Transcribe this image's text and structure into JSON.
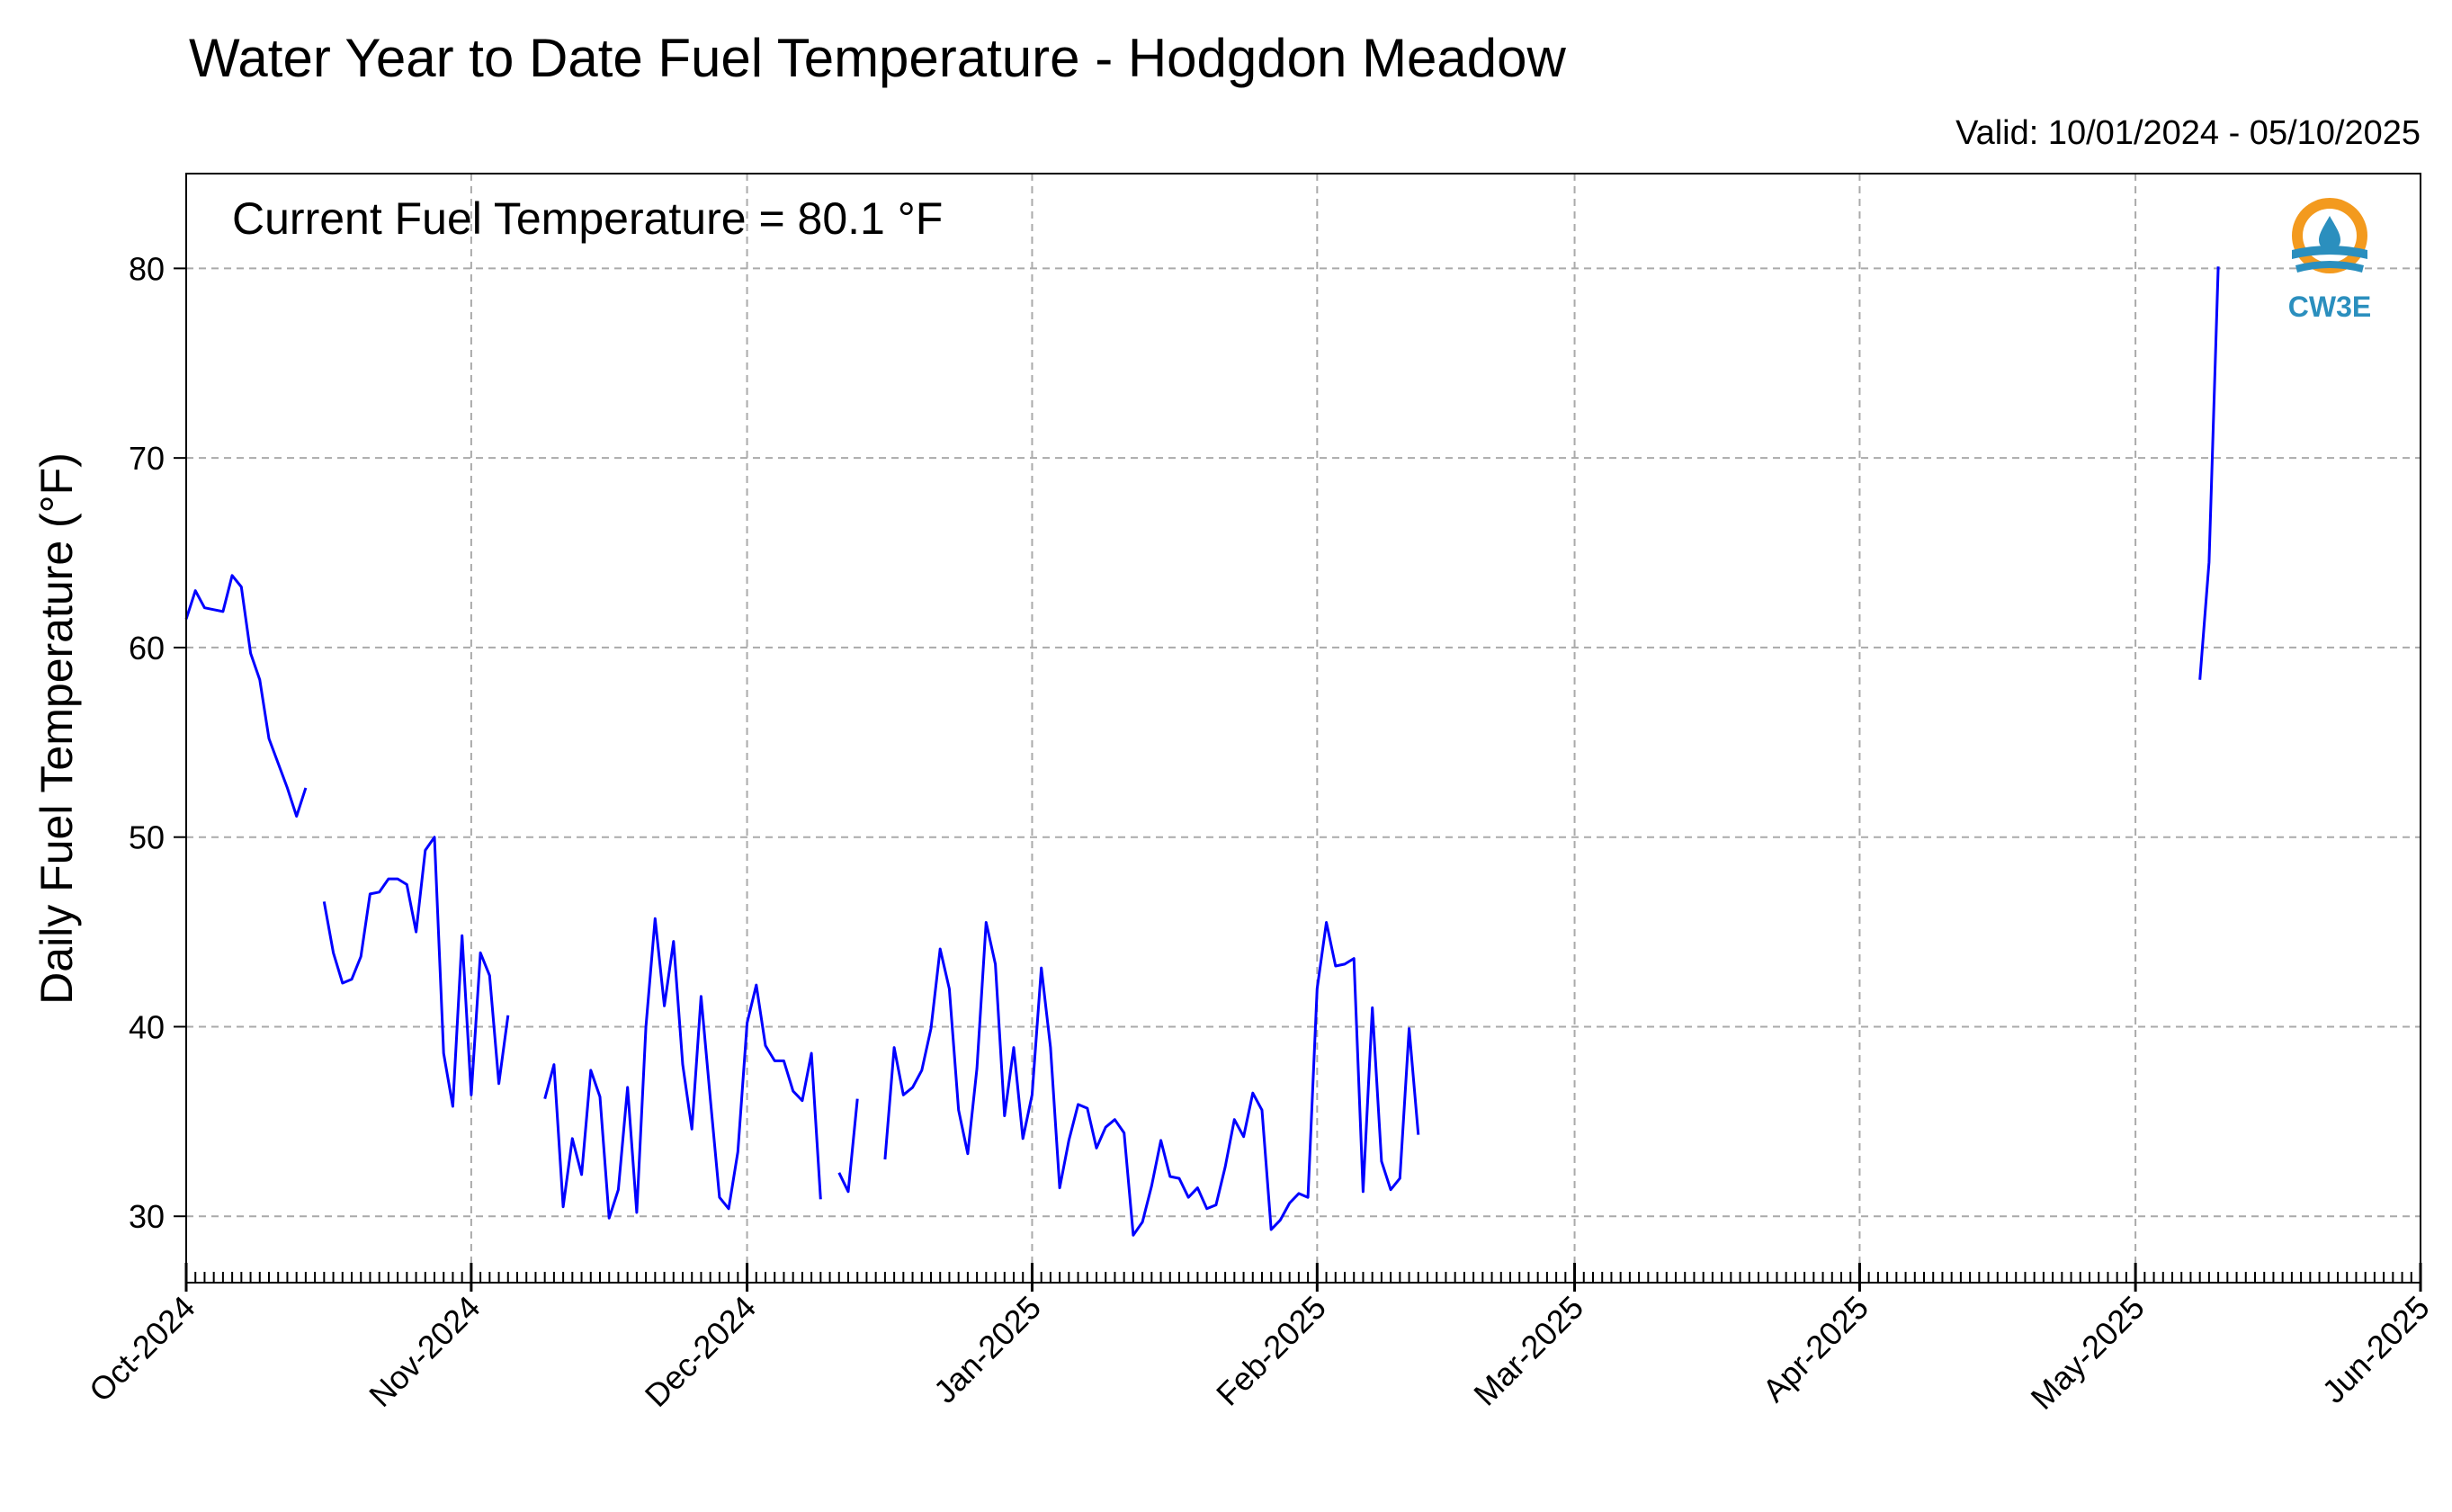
{
  "chart_data": {
    "type": "line",
    "title": "Water Year to Date Fuel Temperature - Hodgdon Meadow",
    "subtitle": "Valid: 10/01/2024 - 05/10/2025",
    "annotation": "Current Fuel Temperature = 80.1 °F",
    "ylabel": "Daily Fuel Temperature (°F)",
    "xlabel": "",
    "ylim": [
      26.5,
      85
    ],
    "xlim": [
      "2024-10-01",
      "2025-06-01"
    ],
    "yticks": [
      30,
      40,
      50,
      60,
      70,
      80
    ],
    "ytick_labels": [
      "30",
      "40",
      "50",
      "60",
      "70",
      "80"
    ],
    "xtick_labels": [
      "Oct-2024",
      "Nov-2024",
      "Dec-2024",
      "Jan-2025",
      "Feb-2025",
      "Mar-2025",
      "Apr-2025",
      "May-2025",
      "Jun-2025"
    ],
    "xtick_dates": [
      "2024-10-01",
      "2024-11-01",
      "2024-12-01",
      "2025-01-01",
      "2025-02-01",
      "2025-03-01",
      "2025-04-01",
      "2025-05-01",
      "2025-06-01"
    ],
    "grid": true,
    "series": [
      {
        "color": "#0000ff",
        "points": [
          [
            "2024-10-01",
            61.5
          ],
          [
            "2024-10-02",
            63.0
          ],
          [
            "2024-10-03",
            62.1
          ],
          [
            "2024-10-04",
            62.0
          ],
          [
            "2024-10-05",
            61.9
          ],
          [
            "2024-10-06",
            63.8
          ],
          [
            "2024-10-07",
            63.2
          ],
          [
            "2024-10-08",
            59.7
          ],
          [
            "2024-10-09",
            58.3
          ],
          [
            "2024-10-10",
            55.2
          ],
          [
            "2024-10-11",
            53.9
          ],
          [
            "2024-10-12",
            52.6
          ],
          [
            "2024-10-13",
            51.1
          ],
          [
            "2024-10-14",
            52.6
          ],
          [
            "2024-10-15",
            null
          ],
          [
            "2024-10-16",
            46.6
          ],
          [
            "2024-10-17",
            43.9
          ],
          [
            "2024-10-18",
            42.3
          ],
          [
            "2024-10-19",
            42.5
          ],
          [
            "2024-10-20",
            43.7
          ],
          [
            "2024-10-21",
            47.0
          ],
          [
            "2024-10-22",
            47.1
          ],
          [
            "2024-10-23",
            47.8
          ],
          [
            "2024-10-24",
            47.8
          ],
          [
            "2024-10-25",
            47.5
          ],
          [
            "2024-10-26",
            45.0
          ],
          [
            "2024-10-27",
            49.3
          ],
          [
            "2024-10-28",
            50.0
          ],
          [
            "2024-10-29",
            38.6
          ],
          [
            "2024-10-30",
            35.8
          ],
          [
            "2024-10-31",
            44.8
          ],
          [
            "2024-11-01",
            36.4
          ],
          [
            "2024-11-02",
            43.9
          ],
          [
            "2024-11-03",
            42.7
          ],
          [
            "2024-11-04",
            37.0
          ],
          [
            "2024-11-05",
            40.6
          ],
          [
            "2024-11-06",
            null
          ],
          [
            "2024-11-09",
            36.2
          ],
          [
            "2024-11-10",
            38.0
          ],
          [
            "2024-11-11",
            30.5
          ],
          [
            "2024-11-12",
            34.1
          ],
          [
            "2024-11-13",
            32.2
          ],
          [
            "2024-11-14",
            37.7
          ],
          [
            "2024-11-15",
            36.3
          ],
          [
            "2024-11-16",
            29.9
          ],
          [
            "2024-11-17",
            31.4
          ],
          [
            "2024-11-18",
            36.8
          ],
          [
            "2024-11-19",
            30.2
          ],
          [
            "2024-11-20",
            40.0
          ],
          [
            "2024-11-21",
            45.7
          ],
          [
            "2024-11-22",
            41.1
          ],
          [
            "2024-11-23",
            44.5
          ],
          [
            "2024-11-24",
            38.0
          ],
          [
            "2024-11-25",
            34.6
          ],
          [
            "2024-11-26",
            41.6
          ],
          [
            "2024-11-27",
            36.2
          ],
          [
            "2024-11-28",
            31.0
          ],
          [
            "2024-11-29",
            30.4
          ],
          [
            "2024-11-30",
            33.4
          ],
          [
            "2024-12-01",
            40.2
          ],
          [
            "2024-12-02",
            42.2
          ],
          [
            "2024-12-03",
            39.0
          ],
          [
            "2024-12-04",
            38.2
          ],
          [
            "2024-12-05",
            38.2
          ],
          [
            "2024-12-06",
            36.6
          ],
          [
            "2024-12-07",
            36.1
          ],
          [
            "2024-12-08",
            38.6
          ],
          [
            "2024-12-09",
            30.9
          ],
          [
            "2024-12-10",
            null
          ],
          [
            "2024-12-11",
            32.3
          ],
          [
            "2024-12-12",
            31.3
          ],
          [
            "2024-12-13",
            36.2
          ],
          [
            "2024-12-14",
            null
          ],
          [
            "2024-12-16",
            33.0
          ],
          [
            "2024-12-17",
            38.9
          ],
          [
            "2024-12-18",
            36.4
          ],
          [
            "2024-12-19",
            36.8
          ],
          [
            "2024-12-20",
            37.7
          ],
          [
            "2024-12-21",
            39.9
          ],
          [
            "2024-12-22",
            44.1
          ],
          [
            "2024-12-23",
            42.0
          ],
          [
            "2024-12-24",
            35.6
          ],
          [
            "2024-12-25",
            33.3
          ],
          [
            "2024-12-26",
            37.8
          ],
          [
            "2024-12-27",
            45.5
          ],
          [
            "2024-12-28",
            43.3
          ],
          [
            "2024-12-29",
            35.3
          ],
          [
            "2024-12-30",
            38.9
          ],
          [
            "2024-12-31",
            34.1
          ],
          [
            "2025-01-01",
            36.4
          ],
          [
            "2025-01-02",
            43.1
          ],
          [
            "2025-01-03",
            38.9
          ],
          [
            "2025-01-04",
            31.5
          ],
          [
            "2025-01-05",
            34.0
          ],
          [
            "2025-01-06",
            35.9
          ],
          [
            "2025-01-07",
            35.7
          ],
          [
            "2025-01-08",
            33.6
          ],
          [
            "2025-01-09",
            34.7
          ],
          [
            "2025-01-10",
            35.1
          ],
          [
            "2025-01-11",
            34.4
          ],
          [
            "2025-01-12",
            29.0
          ],
          [
            "2025-01-13",
            29.7
          ],
          [
            "2025-01-14",
            31.6
          ],
          [
            "2025-01-15",
            34.0
          ],
          [
            "2025-01-16",
            32.1
          ],
          [
            "2025-01-17",
            32.0
          ],
          [
            "2025-01-18",
            31.0
          ],
          [
            "2025-01-19",
            31.5
          ],
          [
            "2025-01-20",
            30.4
          ],
          [
            "2025-01-21",
            30.6
          ],
          [
            "2025-01-22",
            32.6
          ],
          [
            "2025-01-23",
            35.1
          ],
          [
            "2025-01-24",
            34.2
          ],
          [
            "2025-01-25",
            36.5
          ],
          [
            "2025-01-26",
            35.6
          ],
          [
            "2025-01-27",
            29.3
          ],
          [
            "2025-01-28",
            29.8
          ],
          [
            "2025-01-29",
            30.7
          ],
          [
            "2025-01-30",
            31.2
          ],
          [
            "2025-01-31",
            31.0
          ],
          [
            "2025-02-01",
            42.0
          ],
          [
            "2025-02-02",
            45.5
          ],
          [
            "2025-02-03",
            43.2
          ],
          [
            "2025-02-04",
            43.3
          ],
          [
            "2025-02-05",
            43.6
          ],
          [
            "2025-02-06",
            31.3
          ],
          [
            "2025-02-07",
            41.0
          ],
          [
            "2025-02-08",
            32.9
          ],
          [
            "2025-02-09",
            31.4
          ],
          [
            "2025-02-10",
            32.0
          ],
          [
            "2025-02-11",
            39.9
          ],
          [
            "2025-02-12",
            34.3
          ],
          [
            "2025-02-13",
            null
          ],
          [
            "2025-05-08",
            58.3
          ],
          [
            "2025-05-09",
            64.5
          ],
          [
            "2025-05-10",
            80.1
          ]
        ]
      }
    ]
  },
  "logo": {
    "text": "CW3E",
    "ring_color": "#f39a1e",
    "wave_color": "#2b8fbe"
  }
}
